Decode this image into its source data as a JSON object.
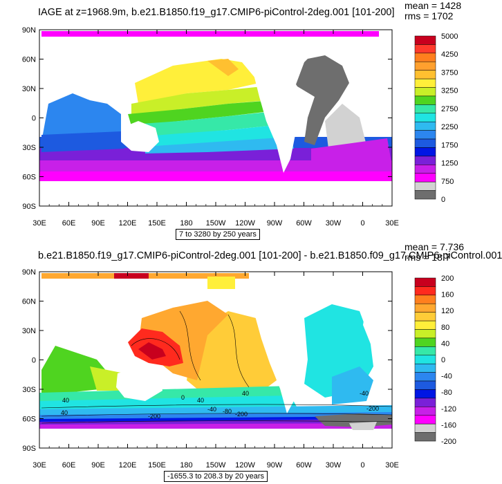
{
  "top": {
    "title": "IAGE at z=1968.9m, b.e21.B1850.f19_g17.CMIP6-piControl-2deg.001 [101-200]",
    "mean": "mean = 1428",
    "rms": "rms = 1702",
    "range_note": "7 to 3280 by 250 years",
    "lat_ticks": [
      "90N",
      "60N",
      "30N",
      "0",
      "30S",
      "60S",
      "90S"
    ],
    "lon_ticks": [
      "30E",
      "60E",
      "90E",
      "120E",
      "150E",
      "180",
      "150W",
      "120W",
      "90W",
      "60W",
      "30W",
      "0",
      "30E"
    ],
    "colorbar": {
      "labels": [
        "5000",
        "4250",
        "3750",
        "3250",
        "2750",
        "2250",
        "1750",
        "1250",
        "750",
        "0"
      ],
      "colors": [
        "#c8001e",
        "#ff3a2c",
        "#ff7f1e",
        "#ffa02e",
        "#ffc030",
        "#ffef3a",
        "#c9ef28",
        "#4fd420",
        "#36e8a8",
        "#20e4e2",
        "#2fbaf0",
        "#2c86ef",
        "#1d5ae0",
        "#0016e4",
        "#7a20d8",
        "#c820e8",
        "#ff00ff",
        "#d2d2d2",
        "#6e6e6e"
      ]
    }
  },
  "bottom": {
    "title": "b.e21.B1850.f19_g17.CMIP6-piControl-2deg.001 [101-200] - b.e21.B1850.f09_g17.CMIP6-piControl.001",
    "mean": "mean = 7.736",
    "rms": "rms = 18.7",
    "range_note": "-1655.3 to 208.3 by 20 years",
    "lat_ticks": [
      "90N",
      "60N",
      "30N",
      "0",
      "30S",
      "60S",
      "90S"
    ],
    "lon_ticks": [
      "30E",
      "60E",
      "90E",
      "120E",
      "150E",
      "180",
      "150W",
      "120W",
      "90W",
      "60W",
      "30W",
      "0",
      "30E"
    ],
    "contour_labels": [
      "40",
      "40",
      "40",
      "0",
      "40",
      "-40",
      "-80",
      "-200",
      "-40",
      "-200",
      "-200"
    ],
    "colorbar": {
      "labels": [
        "200",
        "160",
        "120",
        "80",
        "40",
        "0",
        "-40",
        "-80",
        "-120",
        "-160",
        "-200"
      ],
      "colors": [
        "#c8001e",
        "#ff2a1e",
        "#ff7f1e",
        "#ffa830",
        "#ffcc38",
        "#ffef3a",
        "#c9ef28",
        "#4fd420",
        "#36e8a8",
        "#20e4e2",
        "#2fbaf0",
        "#2c86ef",
        "#1d5ae0",
        "#0016e4",
        "#7a20d8",
        "#c820e8",
        "#ff00ff",
        "#d2d2d2",
        "#6e6e6e"
      ]
    }
  }
}
